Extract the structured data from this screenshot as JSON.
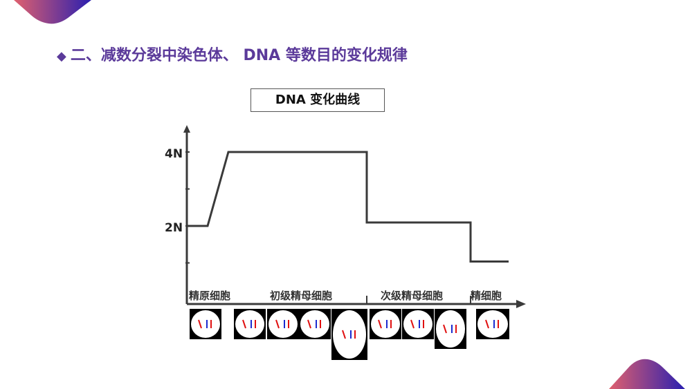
{
  "slide": {
    "title": "二、减数分裂中染色体、 DNA 等数目的变化规律",
    "title_bullet": "◆",
    "title_color": "#5b3a9a",
    "accent_gradient": [
      "#e0606e",
      "#2a1fb0"
    ]
  },
  "chart_data": {
    "type": "line",
    "title": "DNA  变化曲线",
    "y_tick_labels": [
      "4N",
      "2N"
    ],
    "y_ticks": [
      1,
      2,
      3,
      4
    ],
    "ylim": [
      0,
      4.5
    ],
    "stages": [
      "精原细胞",
      "初级精母细胞",
      "次级精母细胞",
      "精细胞"
    ],
    "series": [
      {
        "points": [
          {
            "stage": "精原细胞",
            "y": 2
          },
          {
            "stage": "初级精母细胞",
            "y": 4
          },
          {
            "stage": "次级精母细胞",
            "y": 2
          },
          {
            "stage": "精细胞",
            "y": 1
          }
        ]
      }
    ],
    "line_color": "#3a3a3a",
    "grid": false
  }
}
